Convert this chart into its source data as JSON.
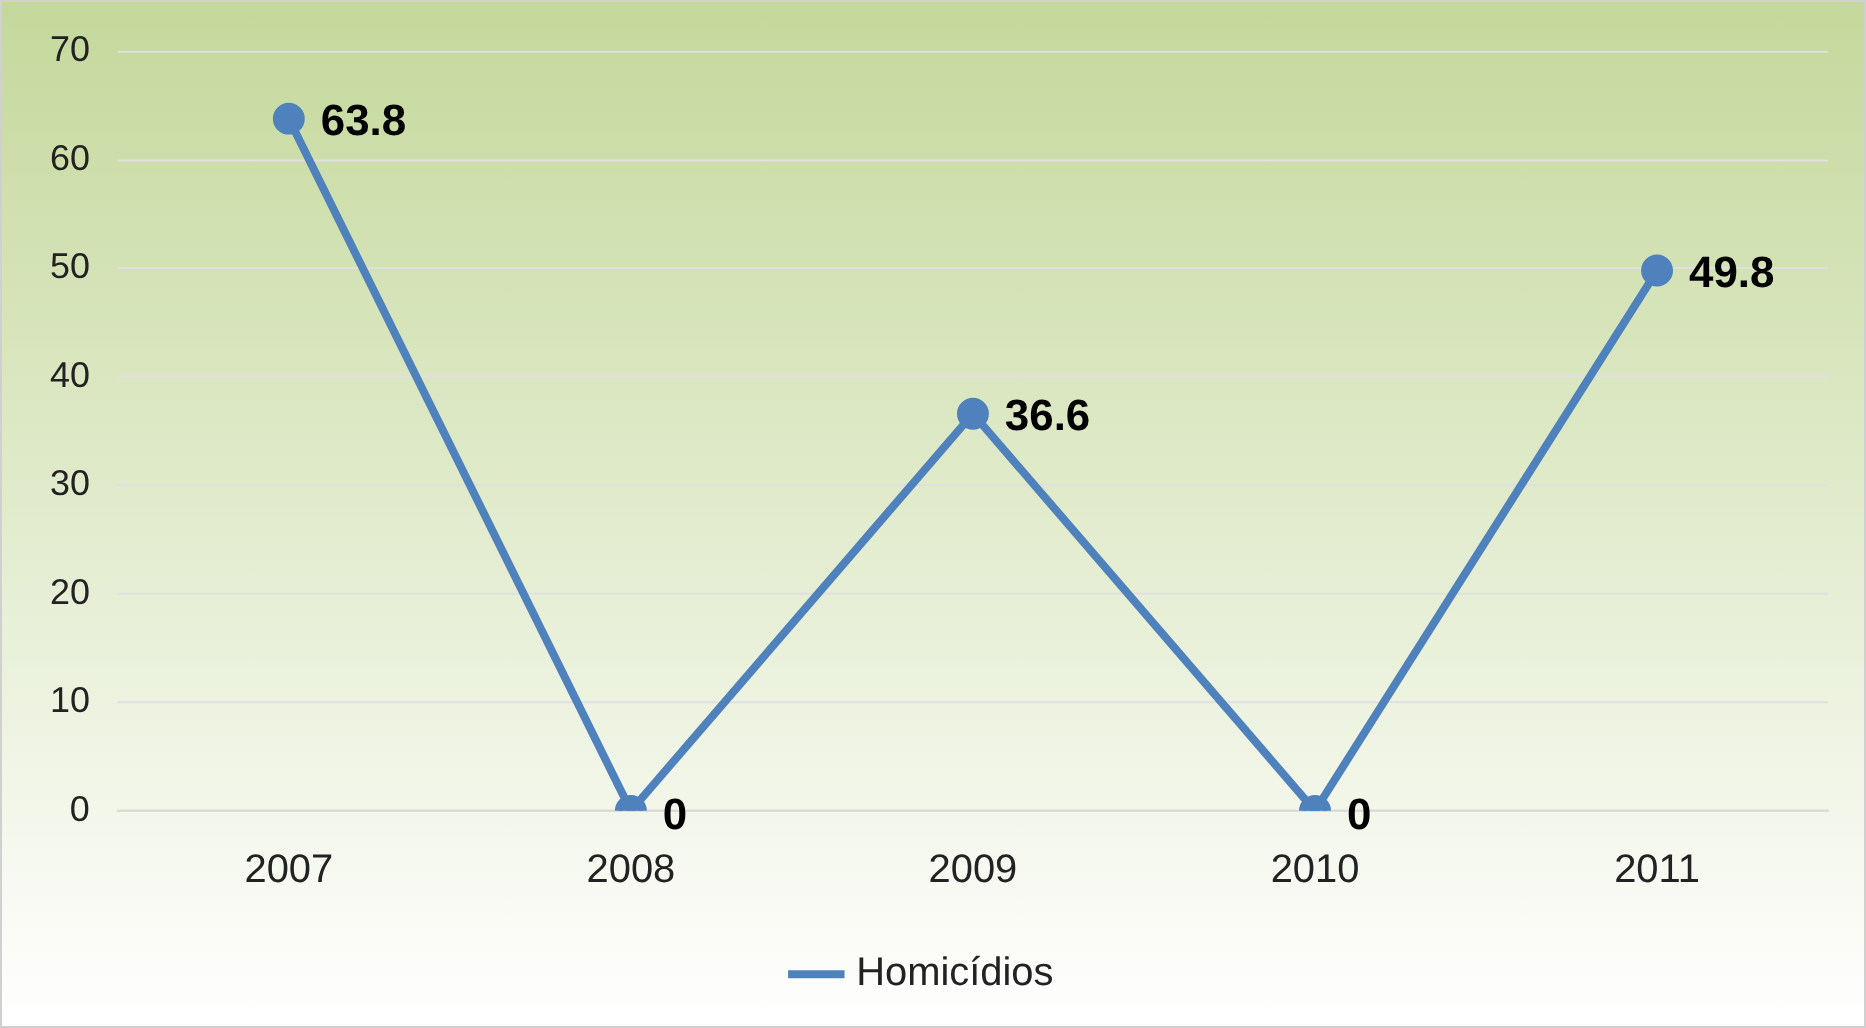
{
  "chart_data": {
    "type": "line",
    "categories": [
      "2007",
      "2008",
      "2009",
      "2010",
      "2011"
    ],
    "series": [
      {
        "name": "Homicídios",
        "color": "#4f81bd",
        "values": [
          63.8,
          0,
          36.6,
          0,
          49.8
        ]
      }
    ],
    "ylim": [
      0,
      70
    ],
    "yticks": [
      0,
      10,
      20,
      30,
      40,
      50,
      60,
      70
    ],
    "grid": "y",
    "legend": "bottom",
    "marker": "circle",
    "line_style": "solid",
    "data_labels": true
  }
}
